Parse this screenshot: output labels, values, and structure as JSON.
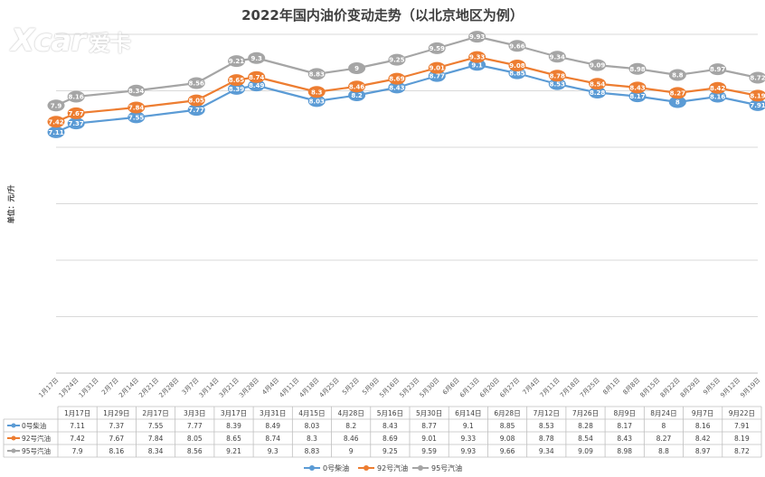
{
  "chart_data": {
    "type": "line",
    "title": "2022年国内油价变动走势（以北京地区为例）",
    "ylabel": "单位：元/升",
    "ylim": [
      0,
      10
    ],
    "grid": true,
    "legend_position": "bottom",
    "x": [
      "1月17日",
      "1月24日",
      "1月31日",
      "2月7日",
      "2月14日",
      "2月21日",
      "2月28日",
      "3月7日",
      "3月14日",
      "3月21日",
      "3月28日",
      "4月4日",
      "4月11日",
      "4月18日",
      "4月25日",
      "5月2日",
      "5月9日",
      "5月16日",
      "5月23日",
      "5月30日",
      "6月6日",
      "6月13日",
      "6月20日",
      "6月27日",
      "7月4日",
      "7月11日",
      "7月18日",
      "7月25日",
      "8月1日",
      "8月8日",
      "8月15日",
      "8月22日",
      "8月29日",
      "9月5日",
      "9月12日",
      "9月19日"
    ],
    "series": [
      {
        "name": "0号柴油",
        "color": "#5b9bd5",
        "values": [
          7.11,
          7.37,
          7.55,
          7.77,
          8.39,
          8.49,
          8.03,
          8.2,
          8.43,
          8.77,
          9.1,
          8.85,
          8.53,
          8.28,
          8.17,
          8,
          8.16,
          7.91
        ],
        "x": [
          "1月17日",
          "1月24日",
          "2月14日",
          "3月7日",
          "3月21日",
          "3月28日",
          "4月18日",
          "5月2日",
          "5月16日",
          "5月30日",
          "6月13日",
          "6月27日",
          "7月11日",
          "7月25日",
          "8月8日",
          "8月22日",
          "9月5日",
          "9月19日"
        ]
      },
      {
        "name": "92号汽油",
        "color": "#ed7d31",
        "values": [
          7.42,
          7.67,
          7.84,
          8.05,
          8.65,
          8.74,
          8.3,
          8.46,
          8.69,
          9.01,
          9.33,
          9.08,
          8.78,
          8.54,
          8.43,
          8.27,
          8.42,
          8.19
        ],
        "x": [
          "1月17日",
          "1月24日",
          "2月14日",
          "3月7日",
          "3月21日",
          "3月28日",
          "4月18日",
          "5月2日",
          "5月16日",
          "5月30日",
          "6月13日",
          "6月27日",
          "7月11日",
          "7月25日",
          "8月8日",
          "8月22日",
          "9月5日",
          "9月19日"
        ]
      },
      {
        "name": "95号汽油",
        "color": "#a5a5a5",
        "values": [
          7.9,
          8.16,
          8.34,
          8.56,
          9.21,
          9.3,
          8.83,
          9,
          9.25,
          9.59,
          9.93,
          9.66,
          9.34,
          9.09,
          8.98,
          8.8,
          8.97,
          8.72
        ],
        "x": [
          "1月17日",
          "1月24日",
          "2月14日",
          "3月7日",
          "3月21日",
          "3月28日",
          "4月18日",
          "5月2日",
          "5月16日",
          "5月30日",
          "6月13日",
          "6月27日",
          "7月11日",
          "7月25日",
          "8月8日",
          "8月22日",
          "9月5日",
          "9月19日"
        ]
      }
    ],
    "table": {
      "dates": [
        "1月17日",
        "1月29日",
        "2月17日",
        "3月3日",
        "3月17日",
        "3月31日",
        "4月15日",
        "4月28日",
        "5月16日",
        "5月30日",
        "6月14日",
        "6月28日",
        "7月12日",
        "7月26日",
        "8月9日",
        "8月24日",
        "9月7日",
        "9月22日"
      ],
      "rows": [
        {
          "name": "0号柴油",
          "values": [
            "7.11",
            "7.37",
            "7.55",
            "7.77",
            "8.39",
            "8.49",
            "8.03",
            "8.2",
            "8.43",
            "8.77",
            "9.1",
            "8.85",
            "8.53",
            "8.28",
            "8.17",
            "8",
            "8.16",
            "7.91"
          ]
        },
        {
          "name": "92号汽油",
          "values": [
            "7.42",
            "7.67",
            "7.84",
            "8.05",
            "8.65",
            "8.74",
            "8.3",
            "8.46",
            "8.69",
            "9.01",
            "9.33",
            "9.08",
            "8.78",
            "8.54",
            "8.43",
            "8.27",
            "8.42",
            "8.19"
          ]
        },
        {
          "name": "95号汽油",
          "values": [
            "7.9",
            "8.16",
            "8.34",
            "8.56",
            "9.21",
            "9.3",
            "8.83",
            "9",
            "9.25",
            "9.59",
            "9.93",
            "9.66",
            "9.34",
            "9.09",
            "8.98",
            "8.8",
            "8.97",
            "8.72"
          ]
        }
      ]
    }
  },
  "watermark": {
    "latin": "Xcar",
    "chinese": "爱卡"
  }
}
